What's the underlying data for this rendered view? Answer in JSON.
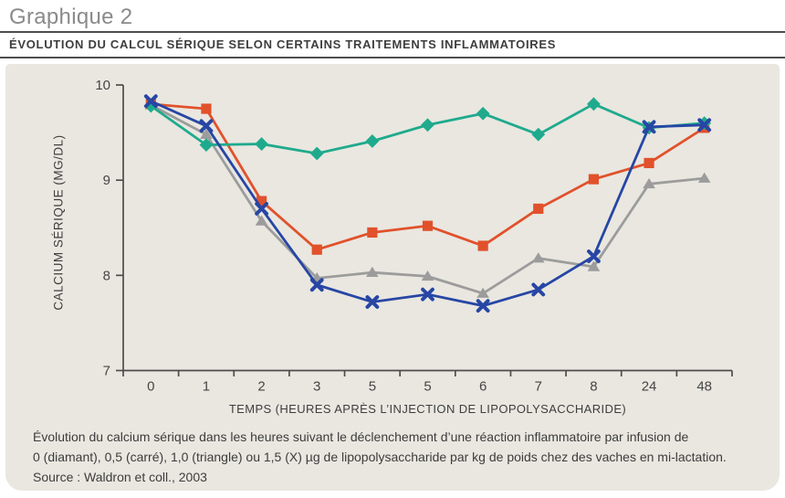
{
  "header": {
    "title": "Graphique 2",
    "subtitle": "ÉVOLUTION DU CALCUL SÉRIQUE SELON CERTAINS TRAITEMENTS INFLAMMATOIRES"
  },
  "caption": {
    "line1": "Évolution du calcium sérique dans les heures suivant le déclenchement d’une réaction inflammatoire par infusion de",
    "line2": "0 (diamant), 0,5 (carré), 1,0 (triangle) ou 1,5 (X) µg de lipopolysaccharide par kg de poids chez des vaches en mi-lactation.",
    "source": "Source : Waldron et coll., 2003"
  },
  "colors": {
    "panel_background": "#e9e7e0",
    "axis": "#4d4d4d",
    "title_gray": "#8a8a8a",
    "text_dark": "#3c3c3c",
    "series_diamond": "#1faa8d",
    "series_square": "#e1512b",
    "series_triangle": "#9c9c9c",
    "series_x": "#2746a4"
  },
  "chart_data": {
    "type": "line",
    "title": "",
    "xlabel": "TEMPS (HEURES APRÈS L’INJECTION DE LIPOPOLYSACCHARIDE)",
    "ylabel": "CALCIUM SÉRIQUE (MG/DL)",
    "categories": [
      "0",
      "1",
      "2",
      "3",
      "5",
      "5",
      "6",
      "7",
      "8",
      "24",
      "48"
    ],
    "ylim": [
      7,
      10
    ],
    "yticks": [
      10,
      9,
      8,
      7
    ],
    "grid": false,
    "legend_position": "none",
    "series": [
      {
        "name": "0 µg (diamant)",
        "marker": "diamond",
        "color": "#1faa8d",
        "values": [
          9.78,
          9.37,
          9.38,
          9.28,
          9.41,
          9.58,
          9.7,
          9.48,
          9.8,
          9.55,
          9.6
        ]
      },
      {
        "name": "0,5 µg (carré)",
        "marker": "square",
        "color": "#e1512b",
        "values": [
          9.8,
          9.75,
          8.78,
          8.27,
          8.45,
          8.52,
          8.31,
          8.7,
          9.01,
          9.18,
          9.55
        ]
      },
      {
        "name": "1,0 µg (triangle)",
        "marker": "triangle",
        "color": "#9c9c9c",
        "values": [
          9.79,
          9.48,
          8.57,
          7.97,
          8.03,
          7.99,
          7.81,
          8.18,
          8.09,
          8.96,
          9.02
        ]
      },
      {
        "name": "1,5 µg (X)",
        "marker": "x",
        "color": "#2746a4",
        "values": [
          9.83,
          9.57,
          8.7,
          7.9,
          7.72,
          7.8,
          7.68,
          7.85,
          8.2,
          9.56,
          9.58
        ]
      }
    ]
  }
}
